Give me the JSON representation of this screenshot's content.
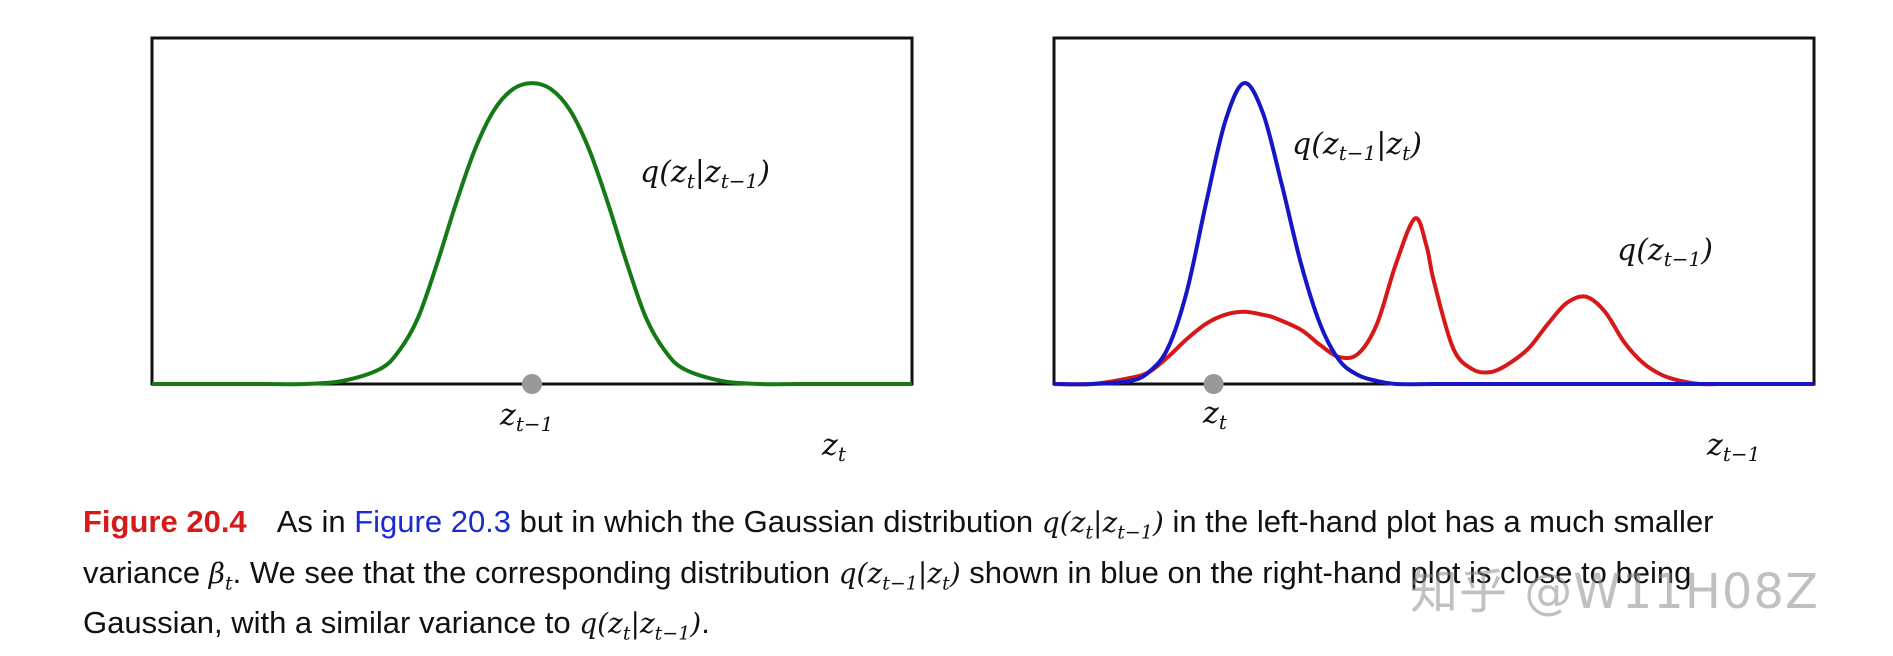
{
  "chart_data": [
    {
      "type": "line",
      "xlim": [
        0,
        10
      ],
      "ylim": [
        0,
        1.15
      ],
      "series": [
        {
          "color": "#157a15",
          "x": [
            0,
            0.5,
            1,
            1.5,
            2,
            2.5,
            3,
            3.25,
            3.5,
            3.75,
            4,
            4.25,
            4.5,
            4.75,
            5,
            5.25,
            5.5,
            5.75,
            6,
            6.25,
            6.5,
            6.75,
            7,
            7.5,
            8,
            8.5,
            9,
            9.5,
            10
          ],
          "y": [
            0,
            0,
            0,
            0,
            0,
            0.01,
            0.05,
            0.11,
            0.22,
            0.4,
            0.6,
            0.78,
            0.91,
            0.98,
            1.0,
            0.98,
            0.91,
            0.78,
            0.6,
            0.4,
            0.22,
            0.11,
            0.05,
            0.01,
            0,
            0,
            0,
            0,
            0
          ]
        }
      ],
      "markers": [
        {
          "x": 5,
          "y": 0,
          "color": "#999999"
        }
      ],
      "labels": {
        "curve": "q(z_t|z_{t-1})",
        "point": "z_{t-1}",
        "axis": "z_t"
      }
    },
    {
      "type": "line",
      "xlim": [
        0,
        10
      ],
      "ylim": [
        0,
        1.15
      ],
      "series": [
        {
          "color": "#1616c8",
          "x": [
            0,
            0.5,
            1,
            1.25,
            1.5,
            1.75,
            2,
            2.25,
            2.5,
            2.75,
            3,
            3.25,
            3.5,
            3.75,
            4,
            4.25,
            4.5,
            5,
            5.5,
            6,
            7,
            8,
            9,
            10
          ],
          "y": [
            0,
            0,
            0.01,
            0.04,
            0.12,
            0.31,
            0.6,
            0.87,
            1.0,
            0.9,
            0.66,
            0.4,
            0.2,
            0.08,
            0.03,
            0.01,
            0,
            0,
            0,
            0,
            0,
            0,
            0,
            0
          ]
        },
        {
          "color": "#d81818",
          "x": [
            0,
            0.5,
            1,
            1.25,
            1.5,
            1.75,
            2,
            2.25,
            2.5,
            2.75,
            2.9,
            3.25,
            3.5,
            3.75,
            4,
            4.25,
            4.5,
            4.75,
            4.9,
            5,
            5.25,
            5.5,
            5.75,
            6,
            6.25,
            6.5,
            6.75,
            7,
            7.25,
            7.5,
            7.75,
            8,
            8.25,
            8.5,
            8.75,
            9,
            9.5,
            10
          ],
          "y": [
            0,
            0,
            0.02,
            0.04,
            0.09,
            0.15,
            0.2,
            0.23,
            0.24,
            0.23,
            0.22,
            0.18,
            0.13,
            0.09,
            0.1,
            0.2,
            0.4,
            0.55,
            0.46,
            0.34,
            0.12,
            0.05,
            0.04,
            0.07,
            0.12,
            0.2,
            0.27,
            0.29,
            0.24,
            0.14,
            0.07,
            0.03,
            0.01,
            0,
            0,
            0,
            0,
            0
          ]
        }
      ],
      "markers": [
        {
          "x": 2.1,
          "y": 0,
          "color": "#999999"
        }
      ],
      "labels": {
        "blue_curve": "q(z_{t-1}|z_t)",
        "red_curve": "q(z_{t-1})",
        "point": "z_t",
        "axis": "z_{t-1}"
      }
    }
  ],
  "caption": {
    "label": "Figure 20.4",
    "text_1": "As in ",
    "ref": "Figure 20.3",
    "text_2": " but in which the Gaussian distribution ",
    "text_3": " in the left-hand plot has a much smaller variance ",
    "text_4": ". We see that the corresponding distribution ",
    "text_5": " shown in blue on the right-hand plot is close to being Gaussian, with a similar variance to ",
    "text_6": "."
  },
  "watermark": "知乎 @W11H08Z"
}
